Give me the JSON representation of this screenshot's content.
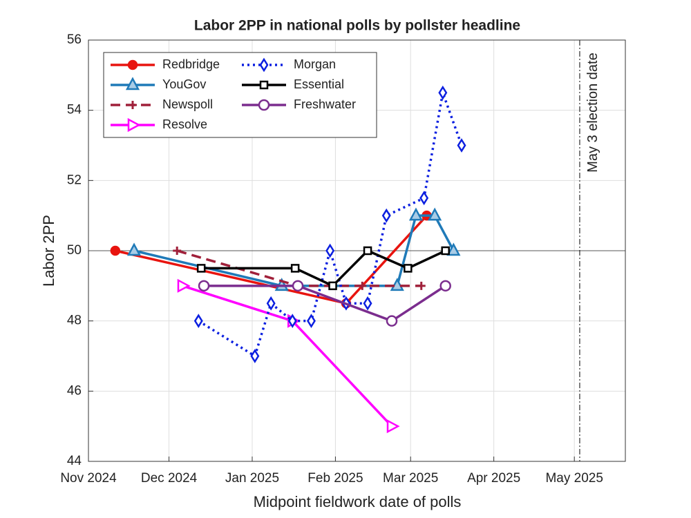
{
  "chart_data": {
    "type": "line",
    "title": "Labor 2PP in national polls by pollster headline",
    "x_label": "Midpoint fieldwork date of polls",
    "y_label": "Labor 2PP",
    "xlim": [
      "2024-11-01",
      "2025-05-20"
    ],
    "xticks": [
      {
        "value": "2024-11-01",
        "label": "Nov 2024"
      },
      {
        "value": "2024-12-01",
        "label": "Dec 2024"
      },
      {
        "value": "2025-01-01",
        "label": "Jan 2025"
      },
      {
        "value": "2025-02-01",
        "label": "Feb 2025"
      },
      {
        "value": "2025-03-01",
        "label": "Mar 2025"
      },
      {
        "value": "2025-04-01",
        "label": "Apr 2025"
      },
      {
        "value": "2025-05-01",
        "label": "May 2025"
      }
    ],
    "ylim": [
      44,
      56
    ],
    "yticks": [
      44,
      46,
      48,
      50,
      52,
      54,
      56
    ],
    "grid": true,
    "reference_line": 50,
    "legend": "upper left",
    "annotation": {
      "text": "May 3 election date",
      "x": "2025-05-03"
    },
    "series": [
      {
        "name": "Redbridge",
        "color": "#e8140f",
        "marker": "circle",
        "line_style": "solid",
        "x": [
          "2024-11-11",
          "2025-02-05",
          "2025-03-07"
        ],
        "values": [
          50,
          48.5,
          51
        ]
      },
      {
        "name": "YouGov",
        "color": "#1f7ab8",
        "marker": "triangle",
        "line_style": "solid",
        "x": [
          "2024-11-18",
          "2025-01-12",
          "2025-02-24",
          "2025-03-03",
          "2025-03-10",
          "2025-03-17"
        ],
        "values": [
          50,
          49,
          49,
          51,
          51,
          50
        ]
      },
      {
        "name": "Newspoll",
        "color": "#a0203a",
        "marker": "plus",
        "line_style": "dashed",
        "x": [
          "2024-12-04",
          "2025-01-18",
          "2025-02-11",
          "2025-03-05"
        ],
        "values": [
          50,
          49,
          49,
          49
        ]
      },
      {
        "name": "Resolve",
        "color": "#ff00ff",
        "marker": "triangle-right",
        "line_style": "solid",
        "x": [
          "2024-12-06",
          "2025-01-16",
          "2025-02-22"
        ],
        "values": [
          49,
          48,
          45
        ]
      },
      {
        "name": "Morgan",
        "color": "#0b1fe0",
        "marker": "diamond",
        "line_style": "dotted",
        "x": [
          "2024-12-12",
          "2025-01-02",
          "2025-01-08",
          "2025-01-16",
          "2025-01-23",
          "2025-01-30",
          "2025-02-05",
          "2025-02-13",
          "2025-02-20",
          "2025-03-06",
          "2025-03-13",
          "2025-03-20"
        ],
        "values": [
          48,
          47,
          48.5,
          48,
          48,
          50,
          48.5,
          48.5,
          51,
          51.5,
          54.5,
          53
        ]
      },
      {
        "name": "Essential",
        "color": "#000000",
        "marker": "square",
        "line_style": "solid",
        "x": [
          "2024-12-13",
          "2025-01-17",
          "2025-01-31",
          "2025-02-13",
          "2025-02-28",
          "2025-03-14"
        ],
        "values": [
          49.5,
          49.5,
          49,
          50,
          49.5,
          50
        ]
      },
      {
        "name": "Freshwater",
        "color": "#7b2d8e",
        "marker": "circle-open",
        "line_style": "solid",
        "x": [
          "2024-12-14",
          "2025-01-18",
          "2025-02-22",
          "2025-03-14"
        ],
        "values": [
          49,
          49,
          48,
          49
        ]
      }
    ]
  }
}
